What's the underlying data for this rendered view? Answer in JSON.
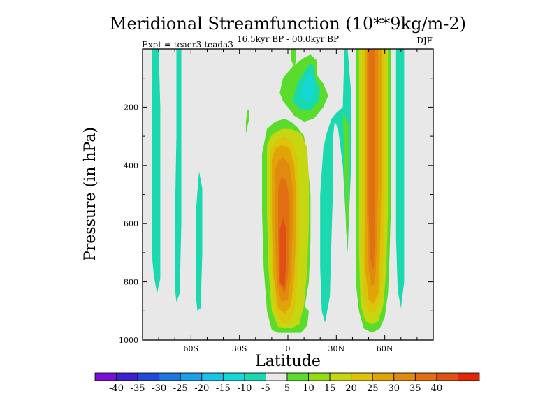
{
  "chart_data": {
    "type": "heatmap",
    "title": "Meridional Streamfunction (10**9kg/m-2)",
    "subtitle": "16.5kyr BP - 00.0kyr BP",
    "left_label": "Expt = teaer3-teada3",
    "right_label": "DJF",
    "xlabel": "Latitude",
    "ylabel": "Pressure (in hPa)",
    "xlim": [
      -90,
      90
    ],
    "ylim": [
      1000,
      0
    ],
    "x_ticks": [
      {
        "value": -60,
        "label": "60S"
      },
      {
        "value": -30,
        "label": "30S"
      },
      {
        "value": 0,
        "label": "0"
      },
      {
        "value": 30,
        "label": "30N"
      },
      {
        "value": 60,
        "label": "60N"
      }
    ],
    "y_ticks": [
      {
        "value": 200,
        "label": "200"
      },
      {
        "value": 400,
        "label": "400"
      },
      {
        "value": 600,
        "label": "600"
      },
      {
        "value": 800,
        "label": "800"
      },
      {
        "value": 1000,
        "label": "1000"
      }
    ],
    "colorbar": {
      "colors": [
        "#7a10d8",
        "#3e1fd4",
        "#2449d8",
        "#1f76e0",
        "#1aa0e8",
        "#18c3ea",
        "#14d8d8",
        "#1ad9ae",
        "#e8e8e8",
        "#5adc2c",
        "#92dc10",
        "#c6d610",
        "#dcc40a",
        "#e0a408",
        "#e08a10",
        "#e07012",
        "#e05014",
        "#e02808"
      ],
      "labels": [
        "-40",
        "-35",
        "-30",
        "-25",
        "-20",
        "-15",
        "-10",
        "-5",
        "5",
        "10",
        "15",
        "20",
        "25",
        "30",
        "35",
        "40"
      ]
    },
    "fields": [
      {
        "name": "tropical-cell-shell",
        "color": "#5adc2c",
        "points": [
          [
            -12,
            760
          ],
          [
            -8,
            820
          ],
          [
            -2,
            895
          ],
          [
            5,
            930
          ],
          [
            10,
            900
          ],
          [
            13,
            800
          ],
          [
            14,
            650
          ],
          [
            14,
            500
          ],
          [
            12,
            380
          ],
          [
            10,
            300
          ],
          [
            6,
            270
          ],
          [
            2,
            250
          ],
          [
            -2,
            240
          ],
          [
            -8,
            250
          ],
          [
            -13,
            275
          ],
          [
            -16,
            360
          ],
          [
            -16,
            560
          ],
          [
            -15,
            750
          ],
          [
            -13,
            900
          ],
          [
            -10,
            965
          ],
          [
            -6,
            975
          ],
          [
            8,
            975
          ],
          [
            12,
            950
          ],
          [
            13,
            900
          ]
        ]
      },
      {
        "name": "tropical-cell-level-15",
        "color": "#c6d610",
        "points": [
          [
            -13,
            330
          ],
          [
            -13,
            560
          ],
          [
            -12,
            760
          ],
          [
            -10,
            900
          ],
          [
            -6,
            955
          ],
          [
            2,
            960
          ],
          [
            7,
            945
          ],
          [
            10,
            880
          ],
          [
            12,
            760
          ],
          [
            13,
            600
          ],
          [
            13,
            450
          ],
          [
            12,
            340
          ],
          [
            8,
            290
          ],
          [
            2,
            275
          ],
          [
            -4,
            275
          ],
          [
            -10,
            295
          ]
        ]
      },
      {
        "name": "tropical-cell-level-20",
        "color": "#dcc40a",
        "points": [
          [
            -11,
            350
          ],
          [
            -11,
            560
          ],
          [
            -10,
            760
          ],
          [
            -8,
            900
          ],
          [
            -4,
            940
          ],
          [
            1,
            940
          ],
          [
            4,
            900
          ],
          [
            6,
            800
          ],
          [
            7,
            650
          ],
          [
            7,
            500
          ],
          [
            6,
            380
          ],
          [
            3,
            320
          ],
          [
            -2,
            300
          ],
          [
            -7,
            310
          ]
        ]
      },
      {
        "name": "tropical-cell-level-25",
        "color": "#e0a408",
        "points": [
          [
            -10,
            380
          ],
          [
            -10,
            580
          ],
          [
            -9,
            780
          ],
          [
            -6,
            890
          ],
          [
            -2,
            910
          ],
          [
            2,
            880
          ],
          [
            4,
            780
          ],
          [
            5,
            640
          ],
          [
            5,
            500
          ],
          [
            4,
            400
          ],
          [
            1,
            340
          ],
          [
            -4,
            330
          ],
          [
            -8,
            345
          ]
        ]
      },
      {
        "name": "tropical-cell-level-30",
        "color": "#e08a10",
        "points": [
          [
            -8,
            420
          ],
          [
            -8,
            620
          ],
          [
            -7,
            800
          ],
          [
            -4,
            870
          ],
          [
            0,
            860
          ],
          [
            2,
            770
          ],
          [
            3,
            620
          ],
          [
            3,
            480
          ],
          [
            1,
            400
          ],
          [
            -3,
            370
          ],
          [
            -6,
            385
          ]
        ]
      },
      {
        "name": "tropical-cell-level-35",
        "color": "#e07012",
        "points": [
          [
            -6,
            480
          ],
          [
            -6,
            660
          ],
          [
            -5,
            810
          ],
          [
            -2,
            840
          ],
          [
            0,
            780
          ],
          [
            1,
            650
          ],
          [
            1,
            520
          ],
          [
            -1,
            450
          ],
          [
            -4,
            440
          ]
        ]
      },
      {
        "name": "tropical-cell-core",
        "color": "#e05014",
        "points": [
          [
            -5,
            620
          ],
          [
            -5,
            800
          ],
          [
            -2,
            820
          ],
          [
            -1,
            720
          ],
          [
            -1,
            620
          ],
          [
            -3,
            580
          ]
        ]
      },
      {
        "name": "upper-tropics-shell",
        "color": "#5adc2c",
        "points": [
          [
            -3,
            180
          ],
          [
            -5,
            150
          ],
          [
            -3,
            100
          ],
          [
            3,
            60
          ],
          [
            10,
            30
          ],
          [
            14,
            20
          ],
          [
            18,
            40
          ],
          [
            18,
            90
          ],
          [
            22,
            120
          ],
          [
            25,
            160
          ],
          [
            22,
            200
          ],
          [
            16,
            240
          ],
          [
            10,
            250
          ],
          [
            4,
            230
          ],
          [
            0,
            200
          ]
        ]
      },
      {
        "name": "upper-tropics-level-neg5",
        "color": "#1ad9ae",
        "points": [
          [
            3,
            180
          ],
          [
            6,
            120
          ],
          [
            10,
            80
          ],
          [
            14,
            50
          ],
          [
            16,
            60
          ],
          [
            17,
            100
          ],
          [
            20,
            140
          ],
          [
            19,
            180
          ],
          [
            14,
            210
          ],
          [
            8,
            210
          ]
        ]
      },
      {
        "name": "upper-tropics-level-neg10",
        "color": "#14d8d8",
        "points": [
          [
            8,
            160
          ],
          [
            10,
            120
          ],
          [
            13,
            80
          ],
          [
            15,
            90
          ],
          [
            16,
            140
          ],
          [
            14,
            180
          ],
          [
            11,
            180
          ]
        ]
      },
      {
        "name": "northern-cell-shell",
        "color": "#5adc2c",
        "points": [
          [
            42,
            0
          ],
          [
            42,
            200
          ],
          [
            42,
            400
          ],
          [
            42,
            600
          ],
          [
            42,
            800
          ],
          [
            44,
            900
          ],
          [
            47,
            960
          ],
          [
            52,
            975
          ],
          [
            57,
            960
          ],
          [
            60,
            920
          ],
          [
            62,
            840
          ],
          [
            63,
            700
          ],
          [
            64,
            500
          ],
          [
            64,
            300
          ],
          [
            64,
            100
          ],
          [
            64,
            0
          ]
        ]
      },
      {
        "name": "northern-cell-level-15",
        "color": "#c6d610",
        "points": [
          [
            44,
            0
          ],
          [
            44,
            200
          ],
          [
            44,
            450
          ],
          [
            44,
            700
          ],
          [
            45,
            880
          ],
          [
            48,
            935
          ],
          [
            52,
            945
          ],
          [
            56,
            935
          ],
          [
            59,
            880
          ],
          [
            61,
            750
          ],
          [
            62,
            550
          ],
          [
            62,
            300
          ],
          [
            62,
            0
          ]
        ]
      },
      {
        "name": "northern-cell-level-20",
        "color": "#dcc40a",
        "points": [
          [
            46,
            0
          ],
          [
            46,
            250
          ],
          [
            46,
            500
          ],
          [
            46,
            700
          ],
          [
            47,
            860
          ],
          [
            50,
            905
          ],
          [
            54,
            905
          ],
          [
            57,
            860
          ],
          [
            59,
            720
          ],
          [
            60,
            500
          ],
          [
            60,
            250
          ],
          [
            60,
            0
          ]
        ]
      },
      {
        "name": "northern-cell-level-25",
        "color": "#e0a408",
        "points": [
          [
            48,
            0
          ],
          [
            48,
            300
          ],
          [
            48,
            550
          ],
          [
            48,
            760
          ],
          [
            50,
            860
          ],
          [
            53,
            875
          ],
          [
            56,
            840
          ],
          [
            57,
            700
          ],
          [
            58,
            450
          ],
          [
            58,
            0
          ]
        ]
      },
      {
        "name": "northern-cell-level-30",
        "color": "#e08a10",
        "points": [
          [
            49,
            0
          ],
          [
            49,
            300
          ],
          [
            49,
            560
          ],
          [
            50,
            760
          ],
          [
            52,
            820
          ],
          [
            54,
            800
          ],
          [
            55,
            680
          ],
          [
            56,
            450
          ],
          [
            56,
            0
          ]
        ]
      },
      {
        "name": "northern-cell-core",
        "color": "#e07012",
        "points": [
          [
            50,
            0
          ],
          [
            50,
            300
          ],
          [
            50,
            560
          ],
          [
            51,
            720
          ],
          [
            53,
            760
          ],
          [
            54,
            650
          ],
          [
            54,
            400
          ],
          [
            54,
            0
          ]
        ]
      },
      {
        "name": "southern-streak-1",
        "color": "#1ad9ae",
        "points": [
          [
            -84,
            0
          ],
          [
            -84,
            200
          ],
          [
            -84,
            500
          ],
          [
            -84,
            720
          ],
          [
            -83,
            780
          ],
          [
            -81,
            840
          ],
          [
            -79,
            790
          ],
          [
            -79,
            500
          ],
          [
            -79,
            200
          ],
          [
            -80,
            0
          ]
        ]
      },
      {
        "name": "southern-streak-2",
        "color": "#1ad9ae",
        "points": [
          [
            -69,
            0
          ],
          [
            -69,
            300
          ],
          [
            -70,
            600
          ],
          [
            -70,
            820
          ],
          [
            -69,
            870
          ],
          [
            -67,
            840
          ],
          [
            -66,
            600
          ],
          [
            -66,
            300
          ],
          [
            -66,
            0
          ]
        ]
      },
      {
        "name": "southern-streak-3",
        "color": "#1ad9ae",
        "points": [
          [
            -57,
            560
          ],
          [
            -57,
            850
          ],
          [
            -56,
            900
          ],
          [
            -54,
            890
          ],
          [
            -53,
            700
          ],
          [
            -53,
            480
          ],
          [
            -55,
            420
          ]
        ]
      },
      {
        "name": "nh-subtropical-streak",
        "color": "#1ad9ae",
        "points": [
          [
            20,
            500
          ],
          [
            20,
            750
          ],
          [
            21,
            900
          ],
          [
            23,
            940
          ],
          [
            26,
            850
          ],
          [
            27,
            650
          ],
          [
            28,
            470
          ],
          [
            28,
            300
          ],
          [
            29,
            250
          ],
          [
            31,
            270
          ],
          [
            34,
            400
          ],
          [
            36,
            600
          ],
          [
            37,
            700
          ],
          [
            39,
            420
          ],
          [
            39,
            140
          ],
          [
            37,
            0
          ],
          [
            35,
            0
          ],
          [
            34,
            200
          ],
          [
            30,
            220
          ],
          [
            27,
            240
          ],
          [
            24,
            290
          ],
          [
            22,
            340
          ]
        ]
      },
      {
        "name": "nh-subtropical-streak-edge",
        "color": "#5adc2c",
        "points": [
          [
            34,
            220
          ],
          [
            35,
            400
          ],
          [
            36,
            620
          ],
          [
            37,
            690
          ],
          [
            38,
            500
          ],
          [
            38,
            260
          ]
        ]
      },
      {
        "name": "nh-high-latitude-streak",
        "color": "#1ad9ae",
        "points": [
          [
            67,
            0
          ],
          [
            67,
            200
          ],
          [
            67,
            450
          ],
          [
            67,
            650
          ],
          [
            68,
            830
          ],
          [
            70,
            890
          ],
          [
            72,
            800
          ],
          [
            72,
            500
          ],
          [
            72,
            200
          ],
          [
            72,
            0
          ]
        ]
      },
      {
        "name": "small-patch-1",
        "color": "#5adc2c",
        "points": [
          [
            -26,
            250
          ],
          [
            -26,
            290
          ],
          [
            -24,
            240
          ],
          [
            -24,
            210
          ],
          [
            -25,
            210
          ]
        ]
      },
      {
        "name": "small-patch-2",
        "color": "#5adc2c",
        "points": [
          [
            2,
            0
          ],
          [
            2,
            40
          ],
          [
            4,
            60
          ],
          [
            5,
            40
          ],
          [
            5,
            0
          ]
        ]
      }
    ]
  }
}
